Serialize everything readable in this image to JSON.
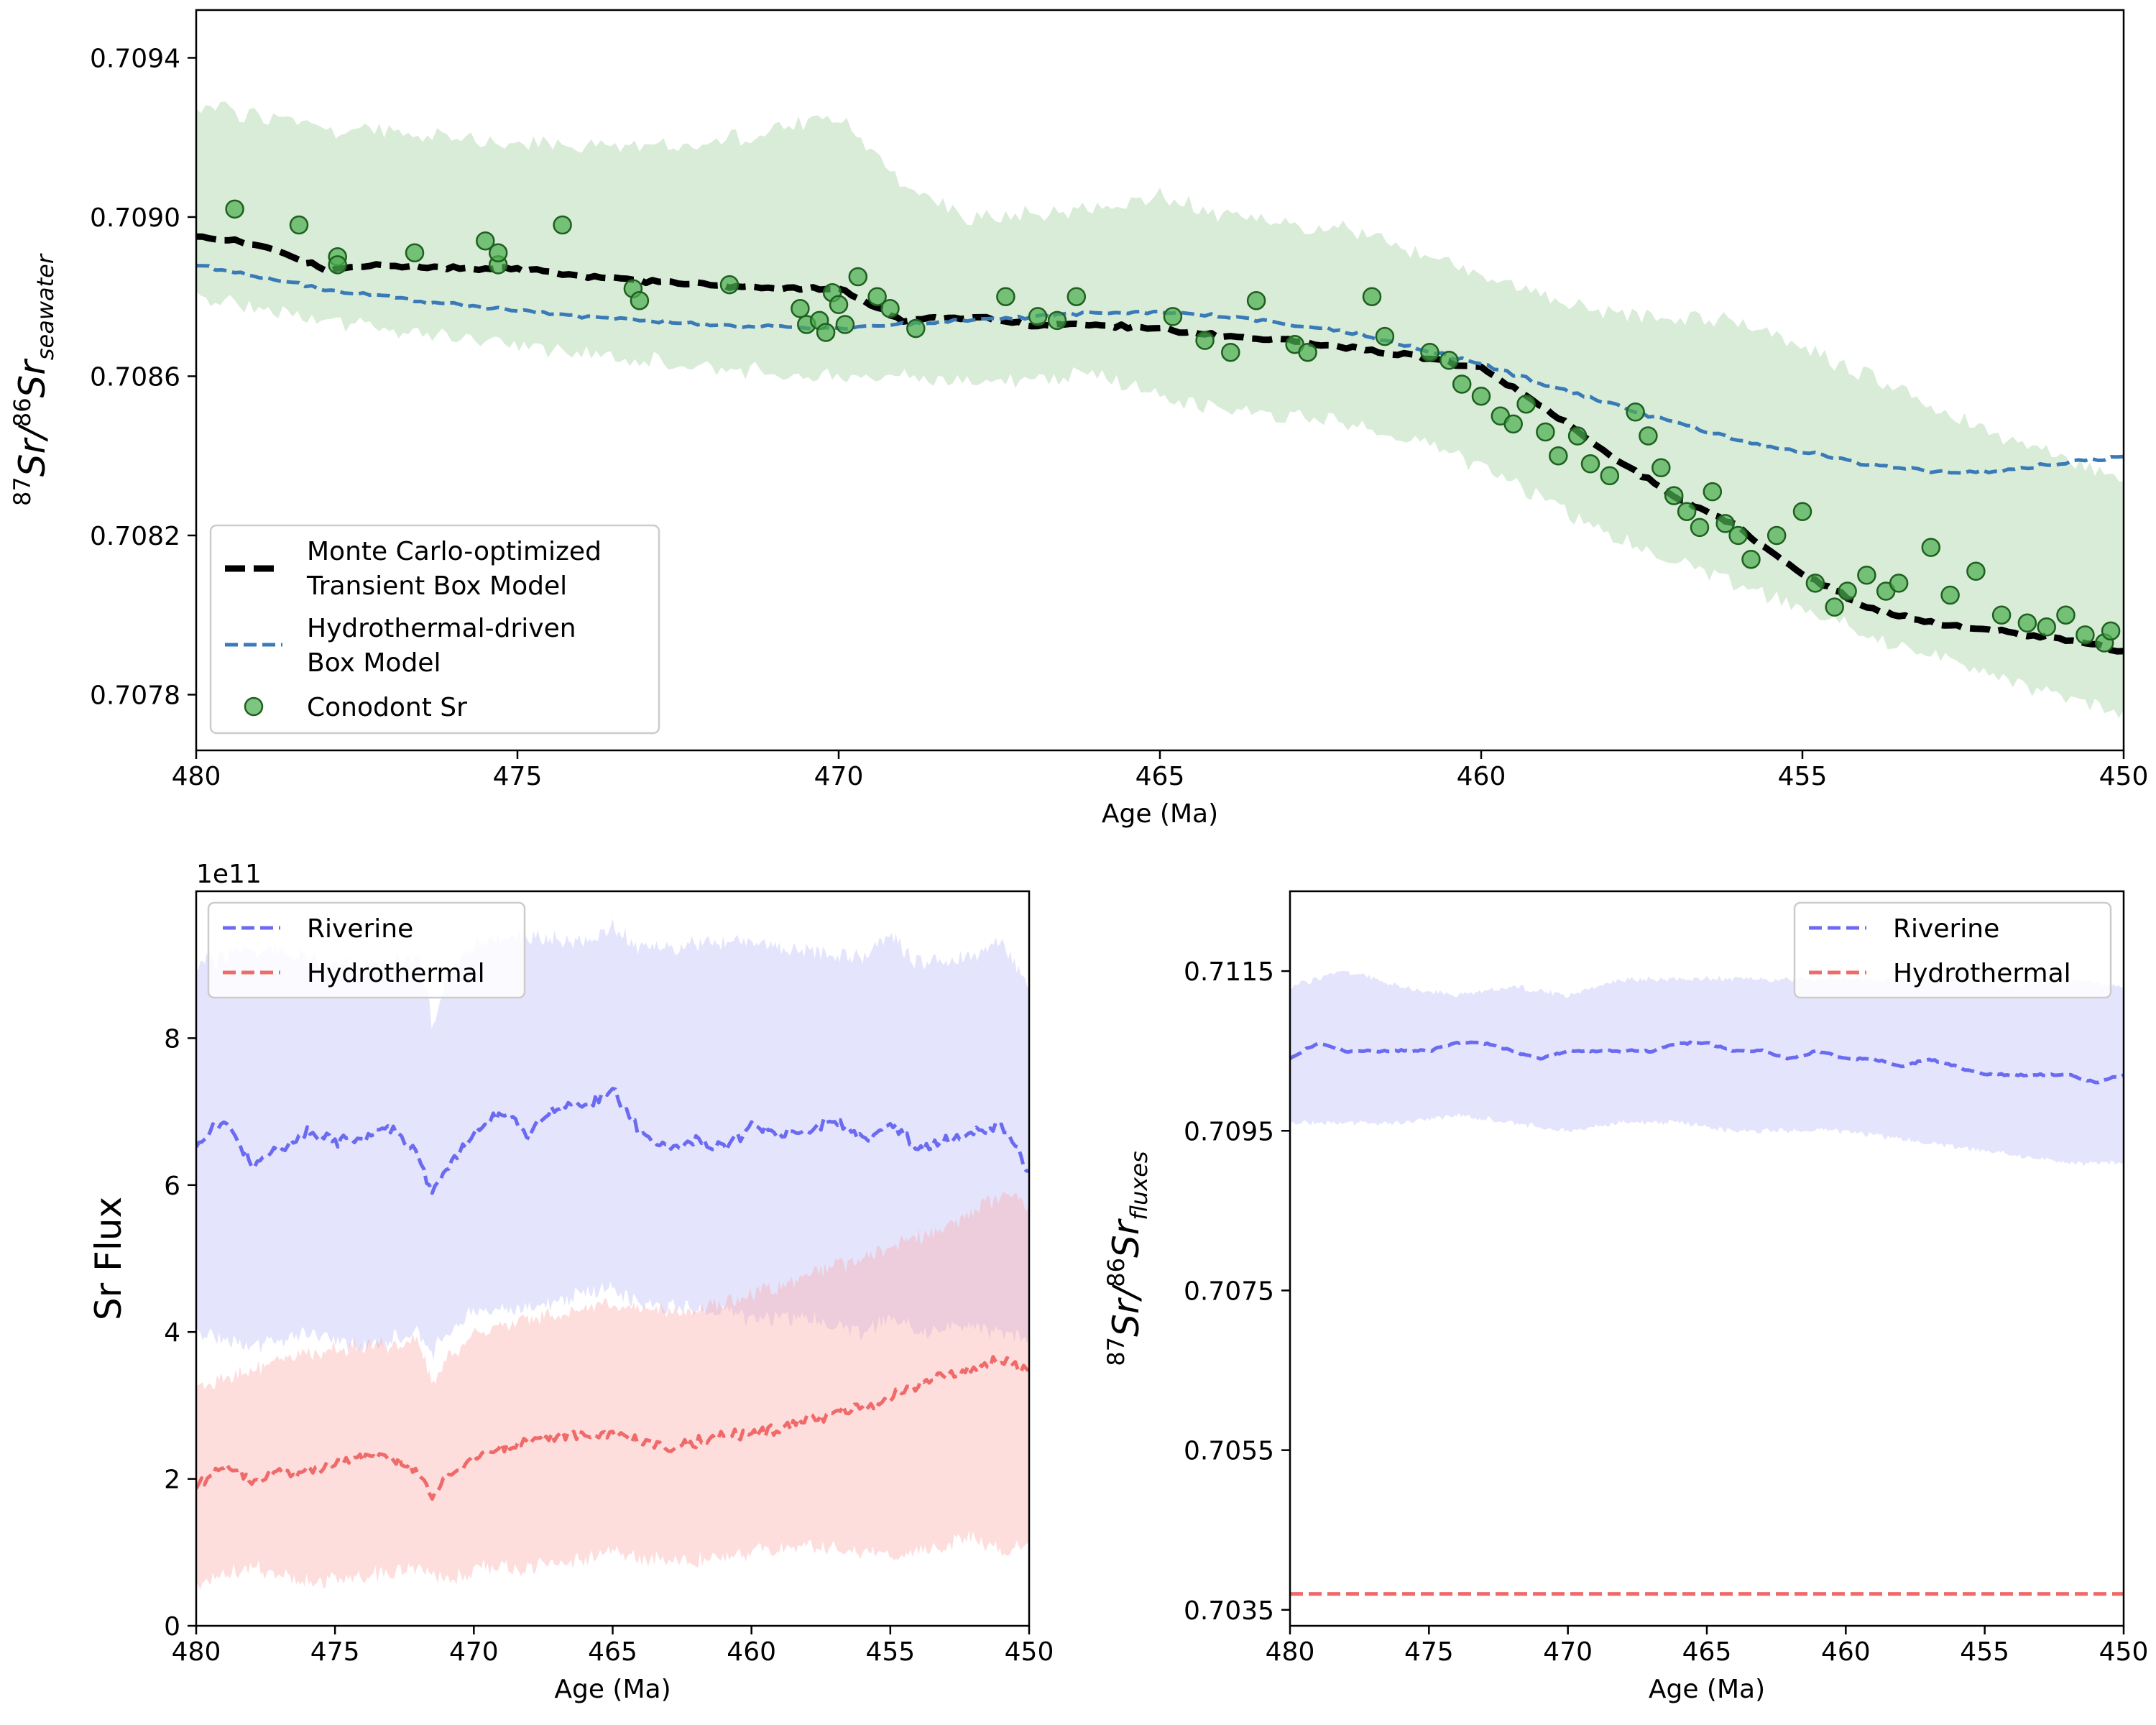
{
  "chart_data": [
    {
      "type": "line",
      "title": "",
      "xlabel": "Age (Ma)",
      "ylabel_main": "87Sr/86Sr",
      "ylabel": {
        "sup1": "87",
        "t1": "Sr/",
        "sup2": "86",
        "t2": "Sr",
        "sub": "seawater"
      },
      "xlim": [
        480,
        450
      ],
      "ylim": [
        0.70766,
        0.70952
      ],
      "xticks": [
        480,
        475,
        470,
        465,
        460,
        455,
        450
      ],
      "yticks": [
        0.7078,
        0.7082,
        0.7086,
        0.709,
        0.7094
      ],
      "ytick_labels": [
        "0.7078",
        "0.7082",
        "0.7086",
        "0.7090",
        "0.7094"
      ],
      "legend": {
        "placement": "lower-left",
        "entries": [
          {
            "key": "mc",
            "lines": [
              "Monte Carlo-optimized",
              "Transient Box Model"
            ]
          },
          {
            "key": "hy",
            "lines": [
              "Hydrothermal-driven",
              "Box Model"
            ]
          },
          {
            "key": "cn",
            "lines": [
              "Conodont Sr"
            ]
          }
        ]
      },
      "series": [
        {
          "name": "Monte Carlo-optimized Transient Box Model",
          "style": "dashed-thick",
          "color": "#000000",
          "x": [
            480,
            479,
            478,
            477,
            476,
            475,
            474,
            473,
            472,
            471,
            470,
            469,
            468,
            467,
            466,
            465,
            464,
            463,
            462,
            461,
            460,
            459,
            458,
            457,
            456,
            455,
            454,
            453,
            452,
            451,
            450
          ],
          "y": [
            0.70895,
            0.70893,
            0.70887,
            0.70888,
            0.70887,
            0.70887,
            0.70885,
            0.70884,
            0.70883,
            0.70882,
            0.70882,
            0.70874,
            0.70875,
            0.70873,
            0.70873,
            0.70872,
            0.7087,
            0.70869,
            0.70867,
            0.70865,
            0.70862,
            0.70852,
            0.7084,
            0.7083,
            0.70822,
            0.7081,
            0.70802,
            0.70798,
            0.70796,
            0.70794,
            0.70791
          ]
        },
        {
          "name": "Hydrothermal-driven Box Model",
          "style": "dashed",
          "color": "#3a7ab7",
          "x": [
            480,
            478,
            476,
            474,
            472,
            470,
            468,
            466,
            465,
            464,
            462,
            460,
            458,
            456,
            454,
            453,
            452,
            450
          ],
          "y": [
            0.70888,
            0.70882,
            0.70878,
            0.70875,
            0.70873,
            0.70872,
            0.70874,
            0.70876,
            0.70876,
            0.70875,
            0.70871,
            0.70863,
            0.70853,
            0.70844,
            0.70838,
            0.70836,
            0.70836,
            0.7084
          ]
        }
      ],
      "bands": [
        {
          "color": "#99cc99",
          "x": [
            480,
            478,
            476,
            474,
            472,
            470,
            469,
            468,
            466,
            465,
            464,
            462,
            460,
            458,
            456,
            454,
            452,
            450
          ],
          "upper": [
            0.70928,
            0.70922,
            0.7092,
            0.70918,
            0.70918,
            0.70926,
            0.70908,
            0.709,
            0.70902,
            0.70905,
            0.709,
            0.70897,
            0.70885,
            0.70876,
            0.70874,
            0.7086,
            0.70845,
            0.70834
          ],
          "lower": [
            0.7088,
            0.70874,
            0.7087,
            0.70866,
            0.70862,
            0.7086,
            0.7086,
            0.70858,
            0.7086,
            0.70855,
            0.70852,
            0.70848,
            0.70838,
            0.7082,
            0.70808,
            0.70795,
            0.70785,
            0.70775
          ]
        }
      ],
      "scatter": {
        "name": "Conodont Sr",
        "color": "#4caf50",
        "x": [
          479.4,
          478.4,
          477.8,
          477.8,
          476.6,
          475.5,
          475.3,
          475.3,
          474.3,
          473.2,
          473.1,
          471.7,
          470.6,
          470.5,
          470.3,
          470.2,
          470.1,
          470.0,
          469.9,
          469.7,
          469.4,
          469.2,
          468.8,
          467.4,
          466.9,
          466.6,
          466.3,
          464.8,
          464.3,
          463.9,
          463.5,
          462.9,
          462.7,
          461.7,
          461.5,
          460.8,
          460.5,
          460.3,
          460.0,
          459.7,
          459.5,
          459.3,
          459.0,
          458.8,
          458.5,
          458.3,
          458.0,
          457.6,
          457.4,
          457.2,
          457.0,
          456.8,
          456.6,
          456.4,
          456.2,
          456.0,
          455.8,
          455.4,
          455.0,
          454.8,
          454.5,
          454.3,
          454.0,
          453.7,
          453.5,
          453.0,
          452.7,
          452.3,
          451.9,
          451.5,
          451.2,
          450.9,
          450.6,
          450.3,
          450.2
        ],
        "y": [
          0.70902,
          0.70898,
          0.7089,
          0.70888,
          0.70891,
          0.70894,
          0.70888,
          0.70891,
          0.70898,
          0.70882,
          0.70879,
          0.70883,
          0.70877,
          0.70873,
          0.70874,
          0.70871,
          0.70881,
          0.70878,
          0.70873,
          0.70885,
          0.7088,
          0.70877,
          0.70872,
          0.7088,
          0.70875,
          0.70874,
          0.7088,
          0.70875,
          0.70869,
          0.70866,
          0.70879,
          0.70868,
          0.70866,
          0.7088,
          0.7087,
          0.70866,
          0.70864,
          0.70858,
          0.70855,
          0.7085,
          0.70848,
          0.70853,
          0.70846,
          0.7084,
          0.70845,
          0.70838,
          0.70835,
          0.70851,
          0.70845,
          0.70837,
          0.7083,
          0.70826,
          0.70822,
          0.70831,
          0.70823,
          0.7082,
          0.70814,
          0.7082,
          0.70826,
          0.70808,
          0.70802,
          0.70806,
          0.7081,
          0.70806,
          0.70808,
          0.70817,
          0.70805,
          0.70811,
          0.708,
          0.70798,
          0.70797,
          0.708,
          0.70795,
          0.70793,
          0.70796
        ]
      }
    },
    {
      "type": "line",
      "title": "",
      "xlabel": "Age (Ma)",
      "ylabel": "Sr Flux",
      "offset_text": "1e11",
      "xlim": [
        480,
        450
      ],
      "ylim": [
        0,
        10
      ],
      "xticks": [
        480,
        475,
        470,
        465,
        460,
        455,
        450
      ],
      "yticks": [
        0,
        2,
        4,
        6,
        8
      ],
      "legend": {
        "placement": "upper-left",
        "entries": [
          "Riverine",
          "Hydrothermal"
        ]
      },
      "series": [
        {
          "name": "Riverine",
          "style": "dashed",
          "color": "#6b6bf2",
          "x": [
            480,
            479,
            478,
            477,
            476,
            475,
            474,
            473,
            472,
            471.5,
            471,
            470,
            469,
            468,
            467,
            466,
            465,
            464,
            463,
            462,
            461,
            460,
            459,
            458,
            457,
            456,
            455,
            454,
            453,
            452,
            451,
            450
          ],
          "y": [
            6.5,
            6.9,
            6.3,
            6.5,
            6.7,
            6.6,
            6.6,
            6.8,
            6.4,
            5.9,
            6.2,
            6.7,
            7.0,
            6.7,
            7.1,
            7.1,
            7.3,
            6.7,
            6.5,
            6.6,
            6.5,
            6.8,
            6.7,
            6.7,
            6.9,
            6.6,
            6.8,
            6.5,
            6.6,
            6.7,
            6.8,
            6.2
          ]
        },
        {
          "name": "Hydrothermal",
          "style": "dashed",
          "color": "#f06a6a",
          "x": [
            480,
            479,
            478,
            477,
            476,
            475,
            474,
            473,
            472,
            471.5,
            471,
            470,
            469,
            468,
            467,
            466,
            465,
            464,
            463,
            462,
            461,
            460,
            459,
            458,
            457,
            456,
            455,
            454,
            453,
            452,
            451,
            450
          ],
          "y": [
            1.9,
            2.2,
            2.0,
            2.1,
            2.1,
            2.2,
            2.3,
            2.3,
            2.1,
            1.8,
            2.0,
            2.3,
            2.4,
            2.5,
            2.6,
            2.6,
            2.6,
            2.5,
            2.4,
            2.5,
            2.6,
            2.6,
            2.7,
            2.8,
            2.9,
            3.0,
            3.1,
            3.3,
            3.4,
            3.5,
            3.6,
            3.5
          ]
        }
      ],
      "bands": [
        {
          "color": "#b7b7f7",
          "x": [
            480,
            478,
            476,
            474,
            472,
            471.5,
            471,
            470,
            468,
            466,
            465,
            464,
            462,
            460,
            458,
            456,
            455,
            454,
            452,
            451,
            450
          ],
          "upper": [
            9.0,
            9.2,
            9.1,
            9.0,
            9.1,
            8.2,
            8.8,
            9.3,
            9.4,
            9.3,
            9.5,
            9.2,
            9.3,
            9.3,
            9.2,
            9.1,
            9.4,
            9.0,
            9.1,
            9.3,
            8.7
          ],
          "lower": [
            4.0,
            3.8,
            4.0,
            3.8,
            4.0,
            3.7,
            4.0,
            4.3,
            4.3,
            4.5,
            4.6,
            4.4,
            4.3,
            4.2,
            4.2,
            4.0,
            4.2,
            4.0,
            4.1,
            4.0,
            3.9
          ]
        },
        {
          "color": "#fca5a5",
          "x": [
            480,
            478,
            476,
            474,
            472,
            471.5,
            471,
            470,
            468,
            466,
            465,
            464,
            462,
            460,
            458,
            456,
            454,
            452,
            451,
            450
          ],
          "upper": [
            3.2,
            3.5,
            3.7,
            3.8,
            3.9,
            3.3,
            3.6,
            4.0,
            4.2,
            4.3,
            4.4,
            4.3,
            4.3,
            4.5,
            4.8,
            5.0,
            5.3,
            5.6,
            5.9,
            5.7
          ],
          "lower": [
            0.6,
            0.8,
            0.6,
            0.7,
            0.8,
            0.7,
            0.6,
            0.8,
            0.8,
            0.9,
            1.0,
            0.9,
            0.9,
            1.0,
            1.1,
            1.0,
            1.0,
            1.2,
            1.0,
            1.1
          ]
        }
      ]
    },
    {
      "type": "line",
      "title": "",
      "xlabel": "Age (Ma)",
      "ylabel_main": "87Sr/86Sr",
      "ylabel": {
        "sup1": "87",
        "t1": "Sr/",
        "sup2": "86",
        "t2": "Sr",
        "sub": "fluxes"
      },
      "xlim": [
        480,
        450
      ],
      "ylim": [
        0.7033,
        0.7125
      ],
      "xticks": [
        480,
        475,
        470,
        465,
        460,
        455,
        450
      ],
      "yticks": [
        0.7035,
        0.7055,
        0.7075,
        0.7095,
        0.7115
      ],
      "ytick_labels": [
        "0.7035",
        "0.7055",
        "0.7075",
        "0.7095",
        "0.7115"
      ],
      "legend": {
        "placement": "upper-right",
        "entries": [
          "Riverine",
          "Hydrothermal"
        ]
      },
      "series": [
        {
          "name": "Riverine",
          "style": "dashed",
          "color": "#6b6bf2",
          "x": [
            480,
            479,
            478,
            477,
            476,
            475,
            474,
            473,
            472,
            471,
            470,
            469,
            468,
            467,
            466,
            465,
            464,
            463,
            462,
            461,
            460,
            459,
            458,
            457,
            456,
            455,
            454,
            453,
            452,
            451,
            450
          ],
          "y": [
            0.7104,
            0.7106,
            0.7105,
            0.7105,
            0.7105,
            0.7105,
            0.7106,
            0.7106,
            0.7105,
            0.7104,
            0.7105,
            0.7105,
            0.7105,
            0.7105,
            0.7106,
            0.7106,
            0.7105,
            0.7105,
            0.7104,
            0.7105,
            0.7104,
            0.7104,
            0.7103,
            0.7104,
            0.7103,
            0.7102,
            0.7102,
            0.7102,
            0.7102,
            0.7101,
            0.7102
          ]
        },
        {
          "name": "Hydrothermal",
          "style": "dashed",
          "color": "#f06a6a",
          "x": [
            480,
            450
          ],
          "y": [
            0.7037,
            0.7037
          ]
        }
      ],
      "bands": [
        {
          "color": "#b7b7f7",
          "x": [
            480,
            478,
            476,
            474,
            472,
            470,
            468,
            466,
            464,
            462,
            460,
            458,
            456,
            454,
            452,
            450
          ],
          "upper": [
            0.7113,
            0.7115,
            0.7113,
            0.7112,
            0.7113,
            0.7112,
            0.7114,
            0.7114,
            0.7114,
            0.7114,
            0.7114,
            0.7114,
            0.7114,
            0.7113,
            0.7114,
            0.7113
          ],
          "lower": [
            0.7096,
            0.7096,
            0.7096,
            0.7097,
            0.7096,
            0.7095,
            0.7096,
            0.7096,
            0.7095,
            0.7095,
            0.7095,
            0.7094,
            0.7093,
            0.7092,
            0.7091,
            0.7091
          ]
        }
      ]
    }
  ]
}
